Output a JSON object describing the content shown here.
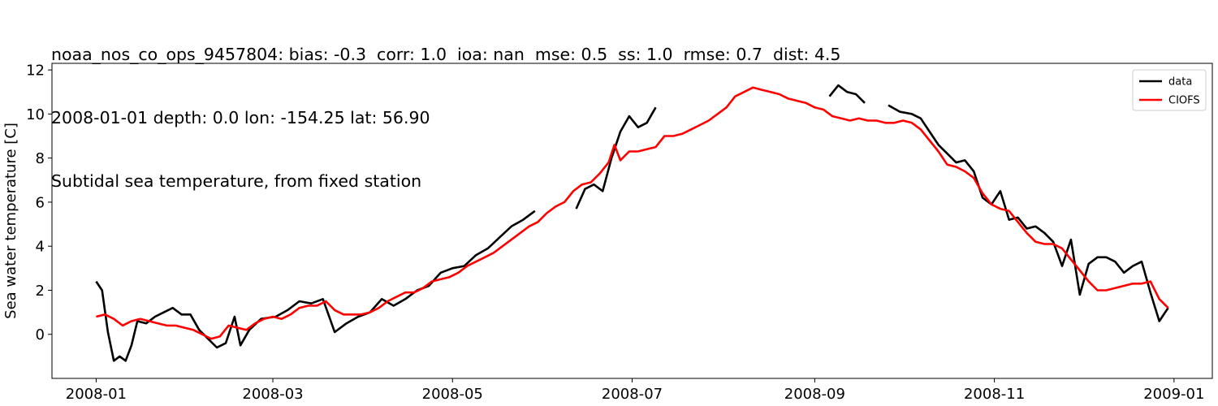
{
  "title_lines": [
    "noaa_nos_co_ops_9457804: bias: -0.3  corr: 1.0  ioa: nan  mse: 0.5  ss: 1.0  rmse: 0.7  dist: 4.5",
    "2008-01-01 depth: 0.0 lon: -154.25 lat: 56.90",
    "Subtidal sea temperature, from fixed station"
  ],
  "chart_data": {
    "type": "line",
    "xlabel": "",
    "ylabel": "Sea water temperature [C]",
    "x_ticks": [
      "2008-01",
      "2008-03",
      "2008-05",
      "2008-07",
      "2008-09",
      "2008-11",
      "2009-01"
    ],
    "y_ticks": [
      "0",
      "2",
      "4",
      "6",
      "8",
      "10",
      "12"
    ],
    "xlim": [
      "2007-12-17",
      "2009-01-14"
    ],
    "ylim": [
      -2.0,
      12.3
    ],
    "legend_position": "upper right",
    "series": [
      {
        "name": "data",
        "color": "#000000",
        "segments": [
          [
            [
              "2008-01-01",
              2.4
            ],
            [
              "2008-01-03",
              2.0
            ],
            [
              "2008-01-05",
              0.1
            ],
            [
              "2008-01-07",
              -1.2
            ],
            [
              "2008-01-09",
              -1.0
            ],
            [
              "2008-01-11",
              -1.2
            ],
            [
              "2008-01-13",
              -0.5
            ],
            [
              "2008-01-15",
              0.6
            ],
            [
              "2008-01-18",
              0.5
            ],
            [
              "2008-01-21",
              0.8
            ],
            [
              "2008-01-24",
              1.0
            ],
            [
              "2008-01-27",
              1.2
            ],
            [
              "2008-01-30",
              0.9
            ],
            [
              "2008-02-02",
              0.9
            ],
            [
              "2008-02-05",
              0.2
            ],
            [
              "2008-02-08",
              -0.2
            ],
            [
              "2008-02-11",
              -0.6
            ],
            [
              "2008-02-14",
              -0.4
            ],
            [
              "2008-02-17",
              0.8
            ],
            [
              "2008-02-19",
              -0.5
            ],
            [
              "2008-02-22",
              0.2
            ],
            [
              "2008-02-26",
              0.7
            ],
            [
              "2008-03-02",
              0.8
            ],
            [
              "2008-03-06",
              1.1
            ],
            [
              "2008-03-10",
              1.5
            ],
            [
              "2008-03-14",
              1.4
            ],
            [
              "2008-03-18",
              1.6
            ],
            [
              "2008-03-22",
              0.1
            ],
            [
              "2008-03-26",
              0.5
            ],
            [
              "2008-03-30",
              0.8
            ],
            [
              "2008-04-03",
              1.0
            ],
            [
              "2008-04-07",
              1.6
            ],
            [
              "2008-04-11",
              1.3
            ],
            [
              "2008-04-15",
              1.6
            ],
            [
              "2008-04-19",
              2.0
            ],
            [
              "2008-04-23",
              2.2
            ],
            [
              "2008-04-27",
              2.8
            ],
            [
              "2008-05-01",
              3.0
            ],
            [
              "2008-05-05",
              3.1
            ],
            [
              "2008-05-09",
              3.6
            ],
            [
              "2008-05-13",
              3.9
            ],
            [
              "2008-05-17",
              4.4
            ],
            [
              "2008-05-21",
              4.9
            ],
            [
              "2008-05-25",
              5.2
            ],
            [
              "2008-05-29",
              5.6
            ]
          ],
          [
            [
              "2008-06-12",
              5.7
            ],
            [
              "2008-06-15",
              6.6
            ],
            [
              "2008-06-18",
              6.8
            ],
            [
              "2008-06-21",
              6.5
            ],
            [
              "2008-06-24",
              8.0
            ],
            [
              "2008-06-27",
              9.2
            ],
            [
              "2008-06-30",
              9.9
            ],
            [
              "2008-07-03",
              9.4
            ],
            [
              "2008-07-06",
              9.6
            ],
            [
              "2008-07-09",
              10.3
            ]
          ],
          [
            [
              "2008-09-06",
              10.8
            ],
            [
              "2008-09-09",
              11.3
            ],
            [
              "2008-09-12",
              11.0
            ],
            [
              "2008-09-15",
              10.9
            ],
            [
              "2008-09-18",
              10.5
            ]
          ],
          [
            [
              "2008-09-26",
              10.4
            ],
            [
              "2008-09-30",
              10.1
            ],
            [
              "2008-10-04",
              10.0
            ],
            [
              "2008-10-07",
              9.8
            ],
            [
              "2008-10-10",
              9.2
            ],
            [
              "2008-10-13",
              8.6
            ],
            [
              "2008-10-16",
              8.2
            ],
            [
              "2008-10-19",
              7.8
            ],
            [
              "2008-10-22",
              7.9
            ],
            [
              "2008-10-25",
              7.4
            ],
            [
              "2008-10-28",
              6.2
            ],
            [
              "2008-10-31",
              5.9
            ],
            [
              "2008-11-03",
              6.5
            ],
            [
              "2008-11-06",
              5.2
            ],
            [
              "2008-11-09",
              5.3
            ],
            [
              "2008-11-12",
              4.8
            ],
            [
              "2008-11-15",
              4.9
            ],
            [
              "2008-11-18",
              4.6
            ],
            [
              "2008-11-21",
              4.2
            ],
            [
              "2008-11-24",
              3.1
            ],
            [
              "2008-11-27",
              4.3
            ],
            [
              "2008-11-30",
              1.8
            ],
            [
              "2008-12-03",
              3.2
            ],
            [
              "2008-12-06",
              3.5
            ],
            [
              "2008-12-09",
              3.5
            ],
            [
              "2008-12-12",
              3.3
            ],
            [
              "2008-12-15",
              2.8
            ],
            [
              "2008-12-18",
              3.1
            ],
            [
              "2008-12-21",
              3.3
            ],
            [
              "2008-12-24",
              1.9
            ],
            [
              "2008-12-27",
              0.6
            ],
            [
              "2008-12-30",
              1.2
            ]
          ]
        ]
      },
      {
        "name": "CIOFS",
        "color": "#ff0000",
        "segments": [
          [
            [
              "2008-01-01",
              0.8
            ],
            [
              "2008-01-04",
              0.9
            ],
            [
              "2008-01-07",
              0.7
            ],
            [
              "2008-01-10",
              0.4
            ],
            [
              "2008-01-13",
              0.6
            ],
            [
              "2008-01-16",
              0.7
            ],
            [
              "2008-01-19",
              0.6
            ],
            [
              "2008-01-22",
              0.5
            ],
            [
              "2008-01-25",
              0.4
            ],
            [
              "2008-01-28",
              0.4
            ],
            [
              "2008-01-31",
              0.3
            ],
            [
              "2008-02-03",
              0.2
            ],
            [
              "2008-02-06",
              0.0
            ],
            [
              "2008-02-09",
              -0.2
            ],
            [
              "2008-02-12",
              -0.1
            ],
            [
              "2008-02-15",
              0.4
            ],
            [
              "2008-02-18",
              0.3
            ],
            [
              "2008-02-21",
              0.2
            ],
            [
              "2008-02-24",
              0.5
            ],
            [
              "2008-02-27",
              0.7
            ],
            [
              "2008-03-01",
              0.8
            ],
            [
              "2008-03-04",
              0.7
            ],
            [
              "2008-03-07",
              0.9
            ],
            [
              "2008-03-10",
              1.2
            ],
            [
              "2008-03-13",
              1.3
            ],
            [
              "2008-03-16",
              1.3
            ],
            [
              "2008-03-19",
              1.5
            ],
            [
              "2008-03-22",
              1.1
            ],
            [
              "2008-03-25",
              0.9
            ],
            [
              "2008-03-28",
              0.9
            ],
            [
              "2008-03-31",
              0.9
            ],
            [
              "2008-04-03",
              1.0
            ],
            [
              "2008-04-06",
              1.2
            ],
            [
              "2008-04-09",
              1.5
            ],
            [
              "2008-04-12",
              1.7
            ],
            [
              "2008-04-15",
              1.9
            ],
            [
              "2008-04-18",
              1.9
            ],
            [
              "2008-04-21",
              2.1
            ],
            [
              "2008-04-24",
              2.4
            ],
            [
              "2008-04-27",
              2.5
            ],
            [
              "2008-04-30",
              2.6
            ],
            [
              "2008-05-03",
              2.8
            ],
            [
              "2008-05-06",
              3.1
            ],
            [
              "2008-05-09",
              3.3
            ],
            [
              "2008-05-12",
              3.5
            ],
            [
              "2008-05-15",
              3.7
            ],
            [
              "2008-05-18",
              4.0
            ],
            [
              "2008-05-21",
              4.3
            ],
            [
              "2008-05-24",
              4.6
            ],
            [
              "2008-05-27",
              4.9
            ],
            [
              "2008-05-30",
              5.1
            ],
            [
              "2008-06-02",
              5.5
            ],
            [
              "2008-06-05",
              5.8
            ],
            [
              "2008-06-08",
              6.0
            ],
            [
              "2008-06-11",
              6.5
            ],
            [
              "2008-06-14",
              6.8
            ],
            [
              "2008-06-17",
              6.9
            ],
            [
              "2008-06-20",
              7.3
            ],
            [
              "2008-06-23",
              7.8
            ],
            [
              "2008-06-25",
              8.6
            ],
            [
              "2008-06-27",
              7.9
            ],
            [
              "2008-06-30",
              8.3
            ],
            [
              "2008-07-03",
              8.3
            ],
            [
              "2008-07-06",
              8.4
            ],
            [
              "2008-07-09",
              8.5
            ],
            [
              "2008-07-12",
              9.0
            ],
            [
              "2008-07-15",
              9.0
            ],
            [
              "2008-07-18",
              9.1
            ],
            [
              "2008-07-21",
              9.3
            ],
            [
              "2008-07-24",
              9.5
            ],
            [
              "2008-07-27",
              9.7
            ],
            [
              "2008-07-30",
              10.0
            ],
            [
              "2008-08-02",
              10.3
            ],
            [
              "2008-08-05",
              10.8
            ],
            [
              "2008-08-08",
              11.0
            ],
            [
              "2008-08-11",
              11.2
            ],
            [
              "2008-08-14",
              11.1
            ],
            [
              "2008-08-17",
              11.0
            ],
            [
              "2008-08-20",
              10.9
            ],
            [
              "2008-08-23",
              10.7
            ],
            [
              "2008-08-26",
              10.6
            ],
            [
              "2008-08-29",
              10.5
            ],
            [
              "2008-09-01",
              10.3
            ],
            [
              "2008-09-04",
              10.2
            ],
            [
              "2008-09-07",
              9.9
            ],
            [
              "2008-09-10",
              9.8
            ],
            [
              "2008-09-13",
              9.7
            ],
            [
              "2008-09-16",
              9.8
            ],
            [
              "2008-09-19",
              9.7
            ],
            [
              "2008-09-22",
              9.7
            ],
            [
              "2008-09-25",
              9.6
            ],
            [
              "2008-09-28",
              9.6
            ],
            [
              "2008-10-01",
              9.7
            ],
            [
              "2008-10-04",
              9.6
            ],
            [
              "2008-10-07",
              9.3
            ],
            [
              "2008-10-10",
              8.8
            ],
            [
              "2008-10-13",
              8.3
            ],
            [
              "2008-10-16",
              7.7
            ],
            [
              "2008-10-19",
              7.6
            ],
            [
              "2008-10-22",
              7.4
            ],
            [
              "2008-10-25",
              7.1
            ],
            [
              "2008-10-28",
              6.4
            ],
            [
              "2008-10-31",
              5.9
            ],
            [
              "2008-11-03",
              5.7
            ],
            [
              "2008-11-06",
              5.6
            ],
            [
              "2008-11-09",
              5.1
            ],
            [
              "2008-11-12",
              4.6
            ],
            [
              "2008-11-15",
              4.2
            ],
            [
              "2008-11-18",
              4.1
            ],
            [
              "2008-11-21",
              4.1
            ],
            [
              "2008-11-24",
              3.9
            ],
            [
              "2008-11-27",
              3.4
            ],
            [
              "2008-11-30",
              2.9
            ],
            [
              "2008-12-03",
              2.4
            ],
            [
              "2008-12-06",
              2.0
            ],
            [
              "2008-12-09",
              2.0
            ],
            [
              "2008-12-12",
              2.1
            ],
            [
              "2008-12-15",
              2.2
            ],
            [
              "2008-12-18",
              2.3
            ],
            [
              "2008-12-21",
              2.3
            ],
            [
              "2008-12-24",
              2.4
            ],
            [
              "2008-12-27",
              1.6
            ],
            [
              "2008-12-30",
              1.2
            ]
          ]
        ]
      }
    ]
  }
}
